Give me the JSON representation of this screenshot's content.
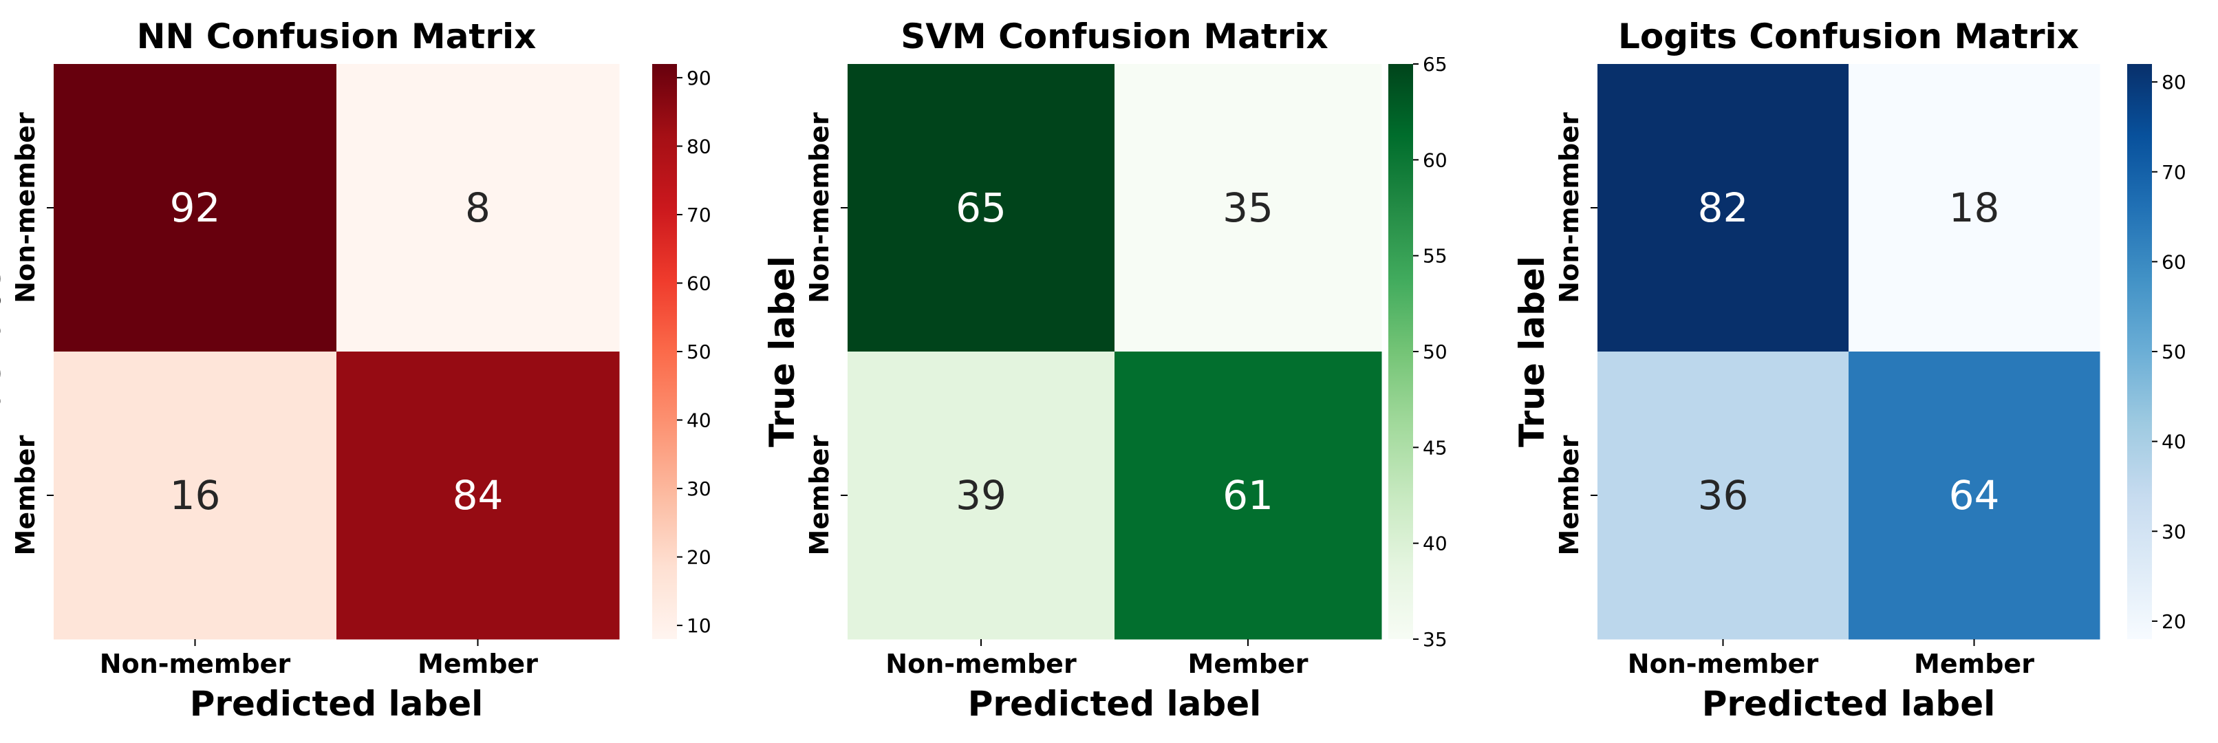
{
  "chart_data": [
    {
      "type": "heatmap",
      "title": "NN Confusion Matrix",
      "xlabel": "Predicted label",
      "ylabel": "True label",
      "x_categories": [
        "Non-member",
        "Member"
      ],
      "y_categories": [
        "Non-member",
        "Member"
      ],
      "values": [
        [
          92,
          8
        ],
        [
          16,
          84
        ]
      ],
      "colormap": "Reds",
      "colorbar": {
        "range": [
          8,
          92
        ],
        "ticks": [
          10,
          20,
          30,
          40,
          50,
          60,
          70,
          80,
          90
        ]
      }
    },
    {
      "type": "heatmap",
      "title": "SVM Confusion Matrix",
      "xlabel": "Predicted label",
      "ylabel": "True label",
      "x_categories": [
        "Non-member",
        "Member"
      ],
      "y_categories": [
        "Non-member",
        "Member"
      ],
      "values": [
        [
          65,
          35
        ],
        [
          39,
          61
        ]
      ],
      "colormap": "Greens",
      "colorbar": {
        "range": [
          35,
          65
        ],
        "ticks": [
          35,
          40,
          45,
          50,
          55,
          60,
          65
        ]
      }
    },
    {
      "type": "heatmap",
      "title": "Logits Confusion Matrix",
      "xlabel": "Predicted label",
      "ylabel": "True label",
      "x_categories": [
        "Non-member",
        "Member"
      ],
      "y_categories": [
        "Non-member",
        "Member"
      ],
      "values": [
        [
          82,
          18
        ],
        [
          36,
          64
        ]
      ],
      "colormap": "Blues",
      "colorbar": {
        "range": [
          18,
          82
        ],
        "ticks": [
          20,
          30,
          40,
          50,
          60,
          70,
          80
        ]
      }
    }
  ],
  "colormaps": {
    "Reds": [
      "#fff5f0",
      "#fee0d2",
      "#fcbba1",
      "#fc9272",
      "#fb6a4a",
      "#ef3b2c",
      "#cb181d",
      "#a50f15",
      "#67000d"
    ],
    "Greens": [
      "#f7fcf5",
      "#e5f5e0",
      "#c7e9c0",
      "#a1d99b",
      "#74c476",
      "#41ab5d",
      "#238b45",
      "#006d2c",
      "#00441b"
    ],
    "Blues": [
      "#f7fbff",
      "#deebf7",
      "#c6dbef",
      "#9ecae1",
      "#6baed6",
      "#4292c6",
      "#2171b5",
      "#08519c",
      "#08306b"
    ]
  }
}
